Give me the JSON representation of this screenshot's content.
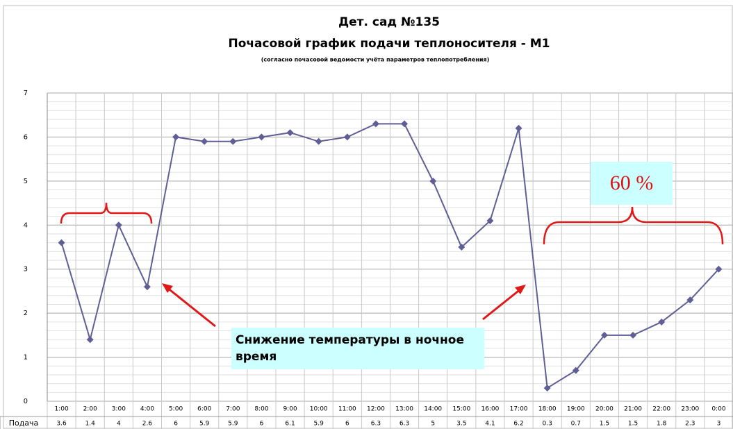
{
  "chart_data": {
    "type": "line",
    "title": "Дет. сад №135",
    "subtitle": "Почасовой график подачи теплоносителя - М1",
    "note": "(согласно почасовой ведомости учёта параметров теплопотребления)",
    "categories": [
      "1:00",
      "2:00",
      "3:00",
      "4:00",
      "5:00",
      "6:00",
      "7:00",
      "8:00",
      "9:00",
      "10:00",
      "11:00",
      "12:00",
      "13:00",
      "14:00",
      "15:00",
      "16:00",
      "17:00",
      "18:00",
      "19:00",
      "20:00",
      "21:00",
      "22:00",
      "23:00",
      "0:00"
    ],
    "series": [
      {
        "name": "Подача",
        "color": "#5f5f96",
        "values": [
          3.6,
          1.4,
          4,
          2.6,
          6,
          5.9,
          5.9,
          6,
          6.1,
          5.9,
          6,
          6.3,
          6.3,
          5,
          3.5,
          4.1,
          6.2,
          0.3,
          0.7,
          1.5,
          1.5,
          1.8,
          2.3,
          3
        ]
      }
    ],
    "ylim": [
      0,
      7
    ],
    "yticks": [
      0,
      1,
      2,
      3,
      4,
      5,
      6,
      7
    ],
    "grid": true,
    "annotations": [
      "60 %",
      "Снижение температуры в ночное время"
    ]
  }
}
